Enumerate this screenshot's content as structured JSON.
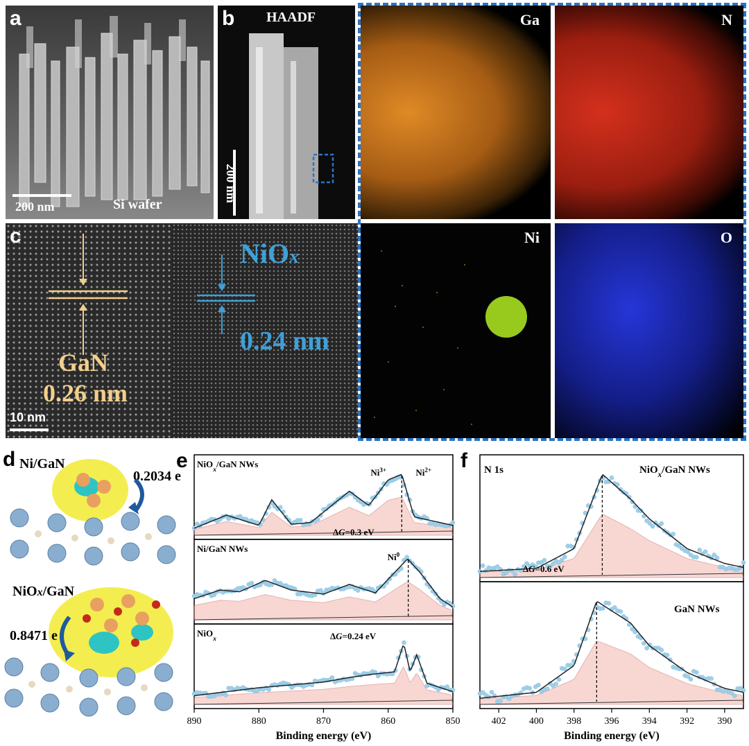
{
  "panels": {
    "a": {
      "letter": "a",
      "scale": "200 nm",
      "label": "Si wafer"
    },
    "b": {
      "letter": "b",
      "mode": "HAADF",
      "scale": "200 nm"
    },
    "maps": {
      "ga": "Ga",
      "n": "N",
      "ni": "Ni",
      "o": "O"
    },
    "c": {
      "letter": "c",
      "nio": "NiO",
      "nio_sub": "x",
      "nio_spacing": "0.24 nm",
      "gan": "GaN",
      "gan_spacing": "0.26 nm",
      "scale": "10 nm"
    },
    "d": {
      "letter": "d",
      "top_label": "Ni/GaN",
      "top_charge": "0.2034 e",
      "bottom_label_main": "NiO",
      "bottom_label_sub": "x",
      "bottom_label_tail": "/GaN",
      "bottom_charge": "0.8471 e"
    },
    "e": {
      "letter": "e"
    },
    "f": {
      "letter": "f"
    }
  },
  "colors": {
    "ga": "#d98420",
    "n": "#c42a1a",
    "ni": "#a8e020",
    "o": "#1f2fd0",
    "frame": "#2a74c4",
    "gan_line": "#f2cf8c",
    "nio_line": "#3fa0d8",
    "data_points": "#9fd0ea"
  },
  "chart_data": [
    {
      "type": "line",
      "title": "",
      "panel": "e",
      "xlabel": "Binding energy (eV)",
      "xlim": [
        890,
        850
      ],
      "x_ticks": [
        890,
        880,
        870,
        860,
        850
      ],
      "subplots": [
        {
          "name": "NiOx/GaN NWs",
          "name_main": "NiO",
          "name_sub": "x",
          "name_tail": "/GaN NWs",
          "peaks": [
            {
              "label": "Ni",
              "sup": "3+",
              "center": 859.5
            },
            {
              "label": "Ni",
              "sup": "2+",
              "center": 857.9
            }
          ],
          "shift_label_main": "Δ",
          "shift_label_g": "G",
          "shift_label_val": "=0.3 eV",
          "envelope": [
            [
              890,
              0.05
            ],
            [
              885,
              0.28
            ],
            [
              880,
              0.1
            ],
            [
              878,
              0.55
            ],
            [
              875,
              0.12
            ],
            [
              872,
              0.15
            ],
            [
              866,
              0.7
            ],
            [
              863,
              0.45
            ],
            [
              860,
              0.9
            ],
            [
              857.9,
              1.0
            ],
            [
              856,
              0.25
            ],
            [
              850,
              0.1
            ]
          ]
        },
        {
          "name": "Ni/GaN NWs",
          "peaks": [
            {
              "label": "Ni",
              "sup": "0",
              "center": 856.9
            }
          ],
          "envelope": [
            [
              890,
              0.3
            ],
            [
              886,
              0.45
            ],
            [
              883,
              0.42
            ],
            [
              879,
              0.62
            ],
            [
              875,
              0.45
            ],
            [
              870,
              0.38
            ],
            [
              866,
              0.55
            ],
            [
              862,
              0.4
            ],
            [
              857,
              1.0
            ],
            [
              855,
              0.75
            ],
            [
              852,
              0.3
            ],
            [
              850,
              0.15
            ]
          ]
        },
        {
          "name": "NiOx",
          "name_main": "NiO",
          "name_sub": "x",
          "shift_label_main": "Δ",
          "shift_label_g": "G",
          "shift_label_val": "=0.24 eV",
          "envelope": [
            [
              890,
              0.08
            ],
            [
              880,
              0.22
            ],
            [
              870,
              0.32
            ],
            [
              866,
              0.4
            ],
            [
              863,
              0.45
            ],
            [
              859,
              0.5
            ],
            [
              857.6,
              1.0
            ],
            [
              856.6,
              0.5
            ],
            [
              855.6,
              0.8
            ],
            [
              854,
              0.3
            ],
            [
              850,
              0.15
            ]
          ]
        }
      ]
    },
    {
      "type": "line",
      "title": "",
      "panel": "f",
      "xlabel": "Binding energy (eV)",
      "xlim": [
        403,
        389
      ],
      "x_ticks": [
        402,
        400,
        398,
        396,
        394,
        392,
        390
      ],
      "core_level": "N 1s",
      "subplots": [
        {
          "name": "NiOx/GaN NWs",
          "name_main": "NiO",
          "name_sub": "x",
          "name_tail": "/GaN NWs",
          "shift_label_main": "Δ",
          "shift_label_g": "G",
          "shift_label_val": "=0.6 eV",
          "peaks": [
            {
              "center": 396.5,
              "height": 1.0
            },
            {
              "center": 394.8,
              "height": 0.55
            },
            {
              "center": 392.5,
              "height": 0.12
            }
          ],
          "envelope": [
            [
              403,
              0.02
            ],
            [
              400,
              0.05
            ],
            [
              398,
              0.25
            ],
            [
              396.5,
              1.0
            ],
            [
              395,
              0.75
            ],
            [
              394,
              0.55
            ],
            [
              392,
              0.25
            ],
            [
              390,
              0.1
            ],
            [
              389,
              0.06
            ]
          ]
        },
        {
          "name": "GaN NWs",
          "peaks": [
            {
              "center": 396.8,
              "height": 1.0
            },
            {
              "center": 394.8,
              "height": 0.5
            },
            {
              "center": 392.8,
              "height": 0.12
            }
          ],
          "envelope": [
            [
              403,
              0.02
            ],
            [
              400,
              0.08
            ],
            [
              398,
              0.35
            ],
            [
              396.8,
              1.0
            ],
            [
              395,
              0.78
            ],
            [
              394,
              0.55
            ],
            [
              392,
              0.28
            ],
            [
              390,
              0.12
            ],
            [
              389,
              0.08
            ]
          ]
        }
      ]
    }
  ]
}
